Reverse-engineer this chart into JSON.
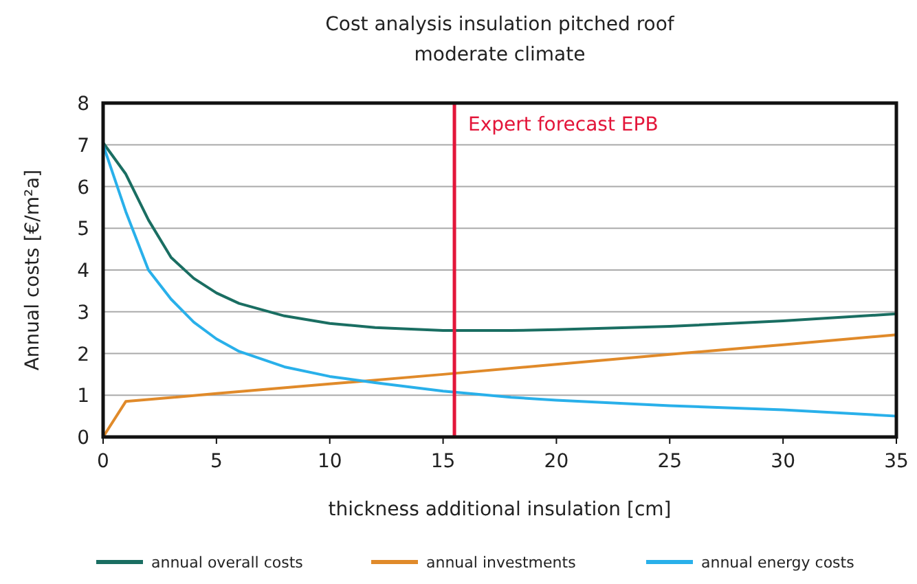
{
  "chart_data": {
    "type": "line",
    "title": "Cost analysis insulation pitched roof",
    "subtitle": "moderate climate",
    "xlabel": "thickness additional insulation [cm]",
    "ylabel": "Annual costs [€/m²a]",
    "xlim": [
      0,
      35
    ],
    "xticks": [
      0,
      5,
      10,
      15,
      20,
      25,
      30,
      35
    ],
    "ylim": [
      0,
      8
    ],
    "yticks": [
      0,
      1,
      2,
      3,
      4,
      5,
      6,
      7,
      8
    ],
    "grid": "y",
    "legend": "bottom",
    "marker": "none",
    "line_style": "solid",
    "ref_lines": [
      {
        "axis": "x",
        "value": 15.5,
        "label": "Expert forecast EPB",
        "color": "#e3163a"
      }
    ],
    "series": [
      {
        "name": "annual overall costs",
        "color": "#1a6e62",
        "x": [
          0,
          1,
          2,
          3,
          4,
          5,
          6,
          8,
          10,
          12,
          15,
          18,
          20,
          25,
          30,
          35
        ],
        "values": [
          7.05,
          6.3,
          5.2,
          4.3,
          3.8,
          3.45,
          3.2,
          2.9,
          2.72,
          2.62,
          2.55,
          2.55,
          2.57,
          2.65,
          2.78,
          2.95
        ]
      },
      {
        "name": "annual investments",
        "color": "#e08a2a",
        "x": [
          0,
          1,
          5,
          10,
          15,
          20,
          25,
          30,
          35
        ],
        "values": [
          0,
          0.85,
          1.04,
          1.27,
          1.5,
          1.74,
          1.98,
          2.21,
          2.45
        ]
      },
      {
        "name": "annual energy costs",
        "color": "#29b0ea",
        "x": [
          0,
          1,
          2,
          3,
          4,
          5,
          6,
          8,
          10,
          12,
          15,
          18,
          20,
          25,
          30,
          35
        ],
        "values": [
          7.0,
          5.4,
          4.0,
          3.3,
          2.75,
          2.35,
          2.05,
          1.68,
          1.45,
          1.3,
          1.1,
          0.95,
          0.88,
          0.75,
          0.65,
          0.5
        ]
      }
    ]
  }
}
